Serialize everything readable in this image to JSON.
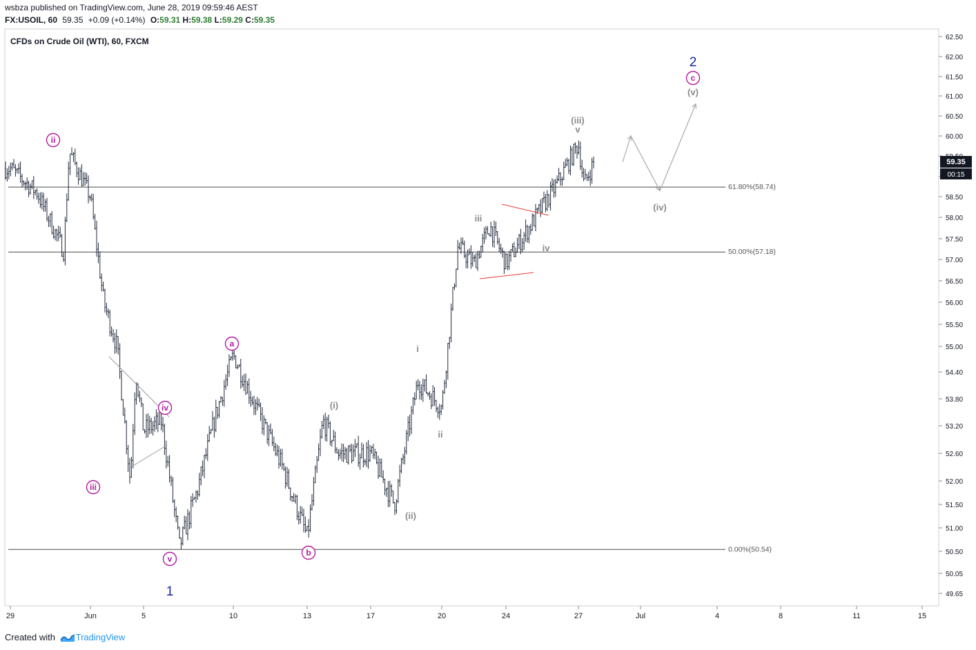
{
  "header": {
    "published_line": "wsbza published on TradingView.com, June 28, 2019 09:59:46 AEST",
    "symbol": "FX:USOIL, 60",
    "last": "59.35",
    "change": "+0.09 (+0.14%)",
    "ohlc": [
      {
        "label": "O:",
        "value": "59.31"
      },
      {
        "label": "H:",
        "value": "59.38"
      },
      {
        "label": "L:",
        "value": "59.29"
      },
      {
        "label": "C:",
        "value": "59.35"
      }
    ]
  },
  "footer": {
    "created_with": "Created with",
    "brand": "TradingView"
  },
  "colors": {
    "candles": "#1e2638",
    "wave_purple": "#b31aa0",
    "wave_gray": "#8a8a8a",
    "wave_blue": "#1626a8",
    "triangle_red": "#e53935",
    "fib_line": "#4a4a4a"
  },
  "chart_data": {
    "type": "line",
    "title": "CFDs on Crude Oil (WTI), 60, FXCM",
    "xlabel": "",
    "ylabel": "",
    "ylim": [
      49.4,
      62.6
    ],
    "x_ticks": [
      "29",
      "Jun",
      "5",
      "10",
      "13",
      "17",
      "20",
      "24",
      "27",
      "Jul",
      "4",
      "8",
      "11",
      "15"
    ],
    "y_ticks": [
      "62.50",
      "62.00",
      "61.50",
      "61.00",
      "60.50",
      "60.00",
      "59.50",
      "59.00",
      "58.50",
      "58.00",
      "57.50",
      "57.00",
      "56.50",
      "56.00",
      "55.50",
      "55.00",
      "54.40",
      "53.80",
      "53.20",
      "52.60",
      "52.00",
      "51.50",
      "51.00",
      "50.50",
      "50.05",
      "49.65"
    ],
    "last_price": "59.35",
    "countdown": "00:15",
    "series": [
      {
        "values": [
          {
            "x": "May 29",
            "y": 59.2
          },
          {
            "x": "May 30",
            "y": 58.6
          },
          {
            "x": "May 31",
            "y": 57.2
          },
          {
            "x": "May 31",
            "y": 59.6
          },
          {
            "x": "Jun 1",
            "y": 58.5
          },
          {
            "x": "Jun 2",
            "y": 56.0
          },
          {
            "x": "Jun 3",
            "y": 55.0
          },
          {
            "x": "Jun 4",
            "y": 52.0
          },
          {
            "x": "Jun 4",
            "y": 54.4
          },
          {
            "x": "Jun 5",
            "y": 53.1
          },
          {
            "x": "Jun 6",
            "y": 53.3
          },
          {
            "x": "Jun 7",
            "y": 50.6
          },
          {
            "x": "Jun 8",
            "y": 51.8
          },
          {
            "x": "Jun 9",
            "y": 53.4
          },
          {
            "x": "Jun 10",
            "y": 54.8
          },
          {
            "x": "Jun 11",
            "y": 53.5
          },
          {
            "x": "Jun 12",
            "y": 52.3
          },
          {
            "x": "Jun 13",
            "y": 50.8
          },
          {
            "x": "Jun 14",
            "y": 53.3
          },
          {
            "x": "Jun 15",
            "y": 52.6
          },
          {
            "x": "Jun 17",
            "y": 52.6
          },
          {
            "x": "Jun 18",
            "y": 51.5
          },
          {
            "x": "Jun 19",
            "y": 54.2
          },
          {
            "x": "Jun 20",
            "y": 53.6
          },
          {
            "x": "Jun 21",
            "y": 57.3
          },
          {
            "x": "Jun 22",
            "y": 56.9
          },
          {
            "x": "Jun 23",
            "y": 57.8
          },
          {
            "x": "Jun 24",
            "y": 56.9
          },
          {
            "x": "Jun 25",
            "y": 57.8
          },
          {
            "x": "Jun 26",
            "y": 58.7
          },
          {
            "x": "Jun 27",
            "y": 59.8
          },
          {
            "x": "Jun 27",
            "y": 58.8
          },
          {
            "x": "Jun 28",
            "y": 59.35
          }
        ]
      }
    ],
    "fib_levels": [
      {
        "label": "61.80%(58.74)",
        "value": 58.74
      },
      {
        "label": "50.00%(57.18)",
        "value": 57.18
      },
      {
        "label": "0.00%(50.54)",
        "value": 50.54
      }
    ],
    "wave_labels": [
      {
        "text": "ii",
        "style": "circle",
        "color": "purple",
        "x": "May 31",
        "y": 59.9
      },
      {
        "text": "iii",
        "style": "circle",
        "color": "purple",
        "x": "Jun 4",
        "y": 51.6
      },
      {
        "text": "iv",
        "style": "circle",
        "color": "purple",
        "x": "Jun 6",
        "y": 53.8
      },
      {
        "text": "v",
        "style": "circle",
        "color": "purple",
        "x": "Jun 7",
        "y": 50.3
      },
      {
        "text": "1",
        "style": "plain",
        "color": "blue",
        "x": "Jun 7",
        "y": 49.75
      },
      {
        "text": "a",
        "style": "circle",
        "color": "purple",
        "x": "Jun 10",
        "y": 55.05
      },
      {
        "text": "b",
        "style": "circle",
        "color": "purple",
        "x": "Jun 13",
        "y": 50.5
      },
      {
        "text": "(i)",
        "style": "plain",
        "color": "gray",
        "x": "Jun 14",
        "y": 53.5
      },
      {
        "text": "(ii)",
        "style": "plain",
        "color": "gray",
        "x": "Jun 18",
        "y": 51.25
      },
      {
        "text": "i",
        "style": "plain",
        "color": "gray",
        "x": "Jun 19",
        "y": 54.95
      },
      {
        "text": "ii",
        "style": "plain",
        "color": "gray",
        "x": "Jun 19",
        "y": 53.1
      },
      {
        "text": "iii",
        "style": "plain",
        "color": "gray",
        "x": "Jun 22",
        "y": 58.0
      },
      {
        "text": "iv",
        "style": "plain",
        "color": "gray",
        "x": "Jun 26",
        "y": 57.1
      },
      {
        "text": "(iii)",
        "style": "plain",
        "color": "gray",
        "x": "Jun 27",
        "y": 60.4
      },
      {
        "text": "v",
        "style": "plain",
        "color": "gray",
        "x": "Jun 27",
        "y": 60.1
      },
      {
        "text": "(iv)",
        "style": "plain",
        "color": "gray",
        "x": "Jul 1",
        "y": 58.1
      },
      {
        "text": "(v)",
        "style": "plain",
        "color": "gray",
        "x": "Jul 3",
        "y": 61.05
      },
      {
        "text": "c",
        "style": "circle",
        "color": "purple",
        "x": "Jul 3",
        "y": 61.45
      },
      {
        "text": "2",
        "style": "plain",
        "color": "blue",
        "x": "Jul 3",
        "y": 61.85
      }
    ],
    "projection": [
      {
        "x": "Jun 28",
        "y": 59.35
      },
      {
        "x": "Jun 29",
        "y": 60.0
      },
      {
        "x": "Jul 1",
        "y": 58.65
      },
      {
        "x": "Jul 3",
        "y": 60.8
      }
    ],
    "grid": false,
    "legend": "none"
  }
}
